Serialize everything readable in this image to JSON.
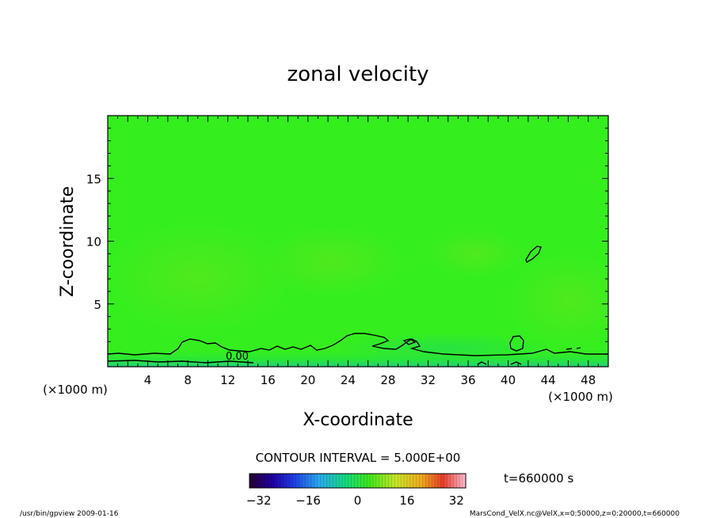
{
  "chart_data": {
    "type": "contour",
    "title": "zonal velocity",
    "xlabel": "X-coordinate",
    "ylabel": "Z-coordinate",
    "x_unit_label": "(×1000 m)",
    "y_unit_label": "(×1000 m)",
    "xlim": [
      0,
      50
    ],
    "ylim": [
      0,
      20
    ],
    "x_ticks": [
      4,
      8,
      12,
      16,
      20,
      24,
      28,
      32,
      36,
      40,
      44,
      48
    ],
    "y_ticks": [
      5,
      10,
      15
    ],
    "contour_interval_text": "CONTOUR INTERVAL = 5.000E+00",
    "contour_label": "0.00",
    "time_text": "t=660000 s",
    "colorbar": {
      "min": -35,
      "max": 35,
      "ticks": [
        -32,
        -16,
        0,
        16,
        32
      ]
    },
    "field_description_colors": {
      "background": "#33ee22",
      "low_layer": "#22dd66"
    }
  },
  "footer": {
    "left": "/usr/bin/gpview  2009-01-16",
    "right": "MarsCond_VelX.nc@VelX,x=0:50000,z=0:20000,t=660000"
  }
}
